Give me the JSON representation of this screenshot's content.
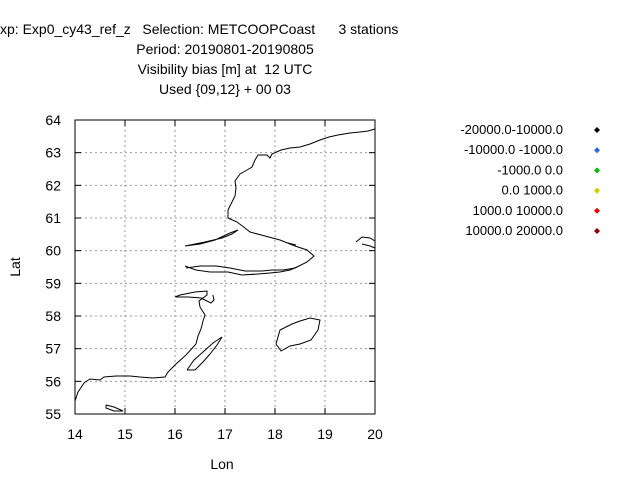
{
  "chart_data": {
    "type": "scatter",
    "title_lines": [
      "xp: Exp0_cy43_ref_z   Selection: METCOOPCoast      3 stations",
      "Period: 20190801-20190805",
      "Visibility bias [m] at  12 UTC",
      "Used {09,12} + 00 03"
    ],
    "xlabel": "Lon",
    "ylabel": "Lat",
    "xlim": [
      14,
      20
    ],
    "ylim": [
      55,
      64
    ],
    "xticks": [
      14,
      15,
      16,
      17,
      18,
      19,
      20
    ],
    "yticks": [
      55,
      56,
      57,
      58,
      59,
      60,
      61,
      62,
      63,
      64
    ],
    "grid": true,
    "legend_position": "right",
    "series": [
      {
        "name": "-20000.0-10000.0",
        "color": "#000000",
        "points": []
      },
      {
        "name": "-10000.0 -1000.0",
        "color": "#3366dd",
        "points": []
      },
      {
        "name": "-1000.0 0.0",
        "color": "#00bb00",
        "points": []
      },
      {
        "name": "0.0 1000.0",
        "color": "#cccc00",
        "points": []
      },
      {
        "name": "1000.0 10000.0",
        "color": "#ee0000",
        "points": []
      },
      {
        "name": "10000.0 20000.0",
        "color": "#880000",
        "points": []
      }
    ]
  }
}
